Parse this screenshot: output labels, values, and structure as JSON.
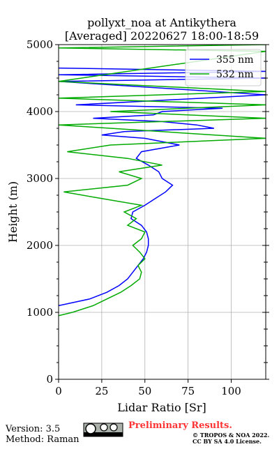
{
  "chart_data": {
    "type": "line",
    "title": "pollyxt_noa at Antikythera",
    "subtitle": "[Averaged] 20220627 18:00-18:59",
    "xlabel": "Lidar Ratio [Sr]",
    "ylabel": "Height (m)",
    "xlim": [
      0,
      120
    ],
    "xticks": [
      0,
      25,
      50,
      75,
      100
    ],
    "ylim": [
      0,
      5000
    ],
    "yticks": [
      0,
      1000,
      2000,
      3000,
      4000,
      5000
    ],
    "yminorticks": [
      250,
      500,
      750,
      1250,
      1500,
      1750,
      2250,
      2500,
      2750,
      3250,
      3500,
      3750,
      4250,
      4500,
      4750
    ],
    "grid": true,
    "legend": "upper right",
    "series": [
      {
        "name": "355 nm",
        "color": "#0000ff",
        "heights": [
          1100,
          1200,
          1300,
          1400,
          1500,
          1600,
          1700,
          1800,
          1900,
          2000,
          2100,
          2200,
          2300,
          2400,
          2500,
          2600,
          2700,
          2800,
          2900,
          3000,
          3100,
          3200,
          3300,
          3400,
          3500,
          3600,
          3650,
          3700,
          3750,
          3800,
          3850,
          3900,
          3950,
          4000,
          4050,
          4100,
          4250,
          4450,
          4500,
          4550,
          4600,
          4650
        ],
        "values": [
          0,
          18,
          28,
          35,
          40,
          43,
          46,
          49,
          51,
          52,
          52,
          51,
          48,
          42,
          43,
          50,
          56,
          62,
          66,
          60,
          58,
          52,
          45,
          48,
          70,
          50,
          25,
          38,
          90,
          80,
          60,
          20,
          55,
          60,
          95,
          10,
          120,
          0,
          120,
          0,
          120,
          0
        ]
      },
      {
        "name": "532 nm",
        "color": "#00aa00",
        "heights": [
          950,
          1000,
          1100,
          1200,
          1300,
          1400,
          1500,
          1600,
          1700,
          1800,
          1900,
          2000,
          2100,
          2200,
          2300,
          2400,
          2500,
          2600,
          2700,
          2800,
          2900,
          3000,
          3100,
          3200,
          3300,
          3400,
          3500,
          3600,
          3700,
          3800,
          3900,
          4000,
          4100,
          4200,
          4300,
          4450,
          4900,
          4950,
          5000
        ],
        "values": [
          0,
          8,
          20,
          28,
          36,
          42,
          47,
          48,
          46,
          50,
          47,
          43,
          48,
          50,
          40,
          45,
          38,
          48,
          25,
          3,
          40,
          48,
          35,
          60,
          40,
          5,
          30,
          120,
          60,
          0,
          120,
          30,
          120,
          0,
          120,
          0,
          120,
          0,
          120
        ]
      }
    ]
  },
  "footer": {
    "version": "Version: 3.5",
    "method": "Method: Raman",
    "notice": "Preliminary Results.",
    "copyright": "© TROPOS & NOA 2022.",
    "license": "CC BY SA 4.0 License."
  }
}
